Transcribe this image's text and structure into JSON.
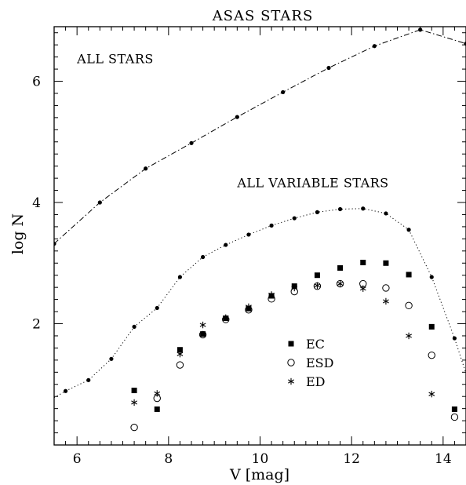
{
  "chart_data": {
    "type": "scatter",
    "title": "ASAS STARS",
    "xlabel": "V [mag]",
    "ylabel": "log N",
    "xlim": [
      5.5,
      14.5
    ],
    "ylim": [
      0.0,
      6.9
    ],
    "x_ticks": [
      6,
      8,
      10,
      12,
      14
    ],
    "y_ticks": [
      2,
      4,
      6
    ],
    "grid": false,
    "legend_position": "center-right",
    "annotations": [
      {
        "text": "ALL STARS",
        "x": 6.0,
        "y": 6.3
      },
      {
        "text": "ALL VARIABLE STARS",
        "x": 9.5,
        "y": 4.25
      }
    ],
    "series": [
      {
        "name": "",
        "line": "dash-dot",
        "marker": "dot",
        "x": [
          5.5,
          6.5,
          7.5,
          8.5,
          9.5,
          10.5,
          11.5,
          12.5,
          13.5,
          14.5
        ],
        "y": [
          3.32,
          4.0,
          4.56,
          4.98,
          5.41,
          5.82,
          6.22,
          6.58,
          6.85,
          6.62
        ]
      },
      {
        "name": "",
        "line": "dotted",
        "marker": "dot",
        "x": [
          5.75,
          6.25,
          6.75,
          7.25,
          7.75,
          8.25,
          8.75,
          9.25,
          9.75,
          10.25,
          10.75,
          11.25,
          11.75,
          12.25,
          12.75,
          13.25,
          13.75,
          14.25
        ],
        "y": [
          0.89,
          1.07,
          1.42,
          1.95,
          2.26,
          2.77,
          3.1,
          3.3,
          3.47,
          3.62,
          3.74,
          3.84,
          3.89,
          3.9,
          3.82,
          3.55,
          2.77,
          1.76
        ],
        "line_extends_to": [
          [
            5.5,
            0.78
          ],
          [
            14.5,
            1.18
          ]
        ]
      },
      {
        "name": "EC",
        "marker": "square",
        "line": "none",
        "x": [
          7.25,
          7.75,
          8.25,
          8.75,
          9.25,
          9.75,
          10.25,
          10.75,
          11.25,
          11.75,
          12.25,
          12.75,
          13.25,
          13.75,
          14.25
        ],
        "y": [
          0.9,
          0.59,
          1.57,
          1.83,
          2.09,
          2.25,
          2.46,
          2.62,
          2.8,
          2.92,
          3.01,
          3.0,
          2.81,
          1.95,
          0.59
        ]
      },
      {
        "name": "ESD",
        "marker": "circle-open",
        "line": "none",
        "x": [
          7.25,
          7.75,
          8.25,
          8.75,
          9.25,
          9.75,
          10.25,
          10.75,
          11.25,
          11.75,
          12.25,
          12.75,
          13.25,
          13.75,
          14.25
        ],
        "y": [
          0.29,
          0.77,
          1.32,
          1.82,
          2.07,
          2.23,
          2.41,
          2.53,
          2.62,
          2.66,
          2.66,
          2.59,
          2.3,
          1.48,
          0.46
        ]
      },
      {
        "name": "ED",
        "marker": "asterisk",
        "line": "none",
        "x": [
          7.25,
          7.75,
          8.25,
          8.75,
          9.25,
          9.75,
          10.25,
          10.75,
          11.25,
          11.75,
          12.25,
          12.75,
          13.25,
          13.75
        ],
        "y": [
          0.7,
          0.85,
          1.5,
          1.98,
          2.1,
          2.28,
          2.48,
          2.59,
          2.63,
          2.66,
          2.58,
          2.37,
          1.8,
          0.84
        ]
      }
    ],
    "colors": {
      "foreground": "#000000",
      "background": "#ffffff"
    }
  }
}
